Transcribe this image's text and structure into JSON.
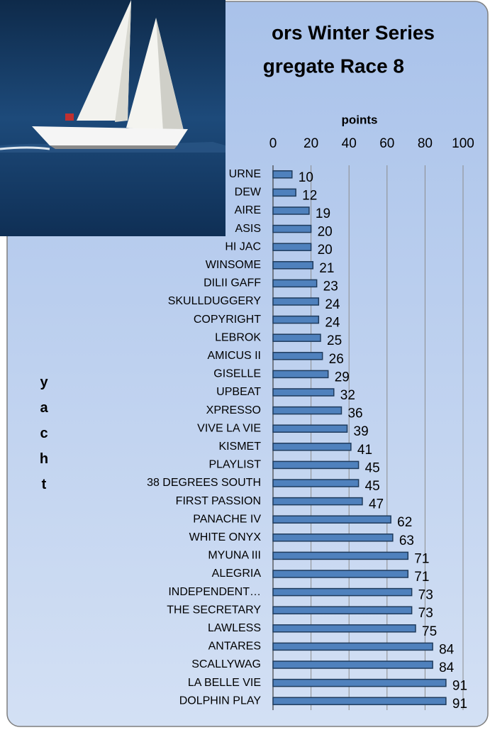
{
  "chart_data": {
    "type": "bar",
    "orientation": "horizontal",
    "title": [
      "ors Winter Series",
      "gregate Race 8"
    ],
    "x_label": "points",
    "y_label": "yacht",
    "categories": [
      "URNE",
      "DEW",
      "AIRE",
      "ASIS",
      "HI JAC",
      "WINSOME",
      "DILII GAFF",
      "SKULLDUGGERY",
      "COPYRIGHT",
      "LEBROK",
      "AMICUS II",
      "GISELLE",
      "UPBEAT",
      "XPRESSO",
      "VIVE LA VIE",
      "KISMET",
      "PLAYLIST",
      "38 DEGREES SOUTH",
      "FIRST PASSION",
      "PANACHE IV",
      "WHITE ONYX",
      "MYUNA III",
      "ALEGRIA",
      "INDEPENDENT…",
      "THE SECRETARY",
      "LAWLESS",
      "ANTARES",
      "SCALLYWAG",
      "LA BELLE VIE",
      "DOLPHIN PLAY"
    ],
    "values": [
      10,
      12,
      19,
      20,
      20,
      21,
      23,
      24,
      24,
      25,
      26,
      29,
      32,
      36,
      39,
      41,
      45,
      45,
      47,
      62,
      63,
      71,
      71,
      73,
      73,
      75,
      84,
      84,
      91,
      91
    ],
    "color": "#4f81bd",
    "xlim": [
      0,
      100
    ],
    "xticks": [
      0,
      20,
      40,
      60,
      80,
      100
    ],
    "grid": true
  }
}
